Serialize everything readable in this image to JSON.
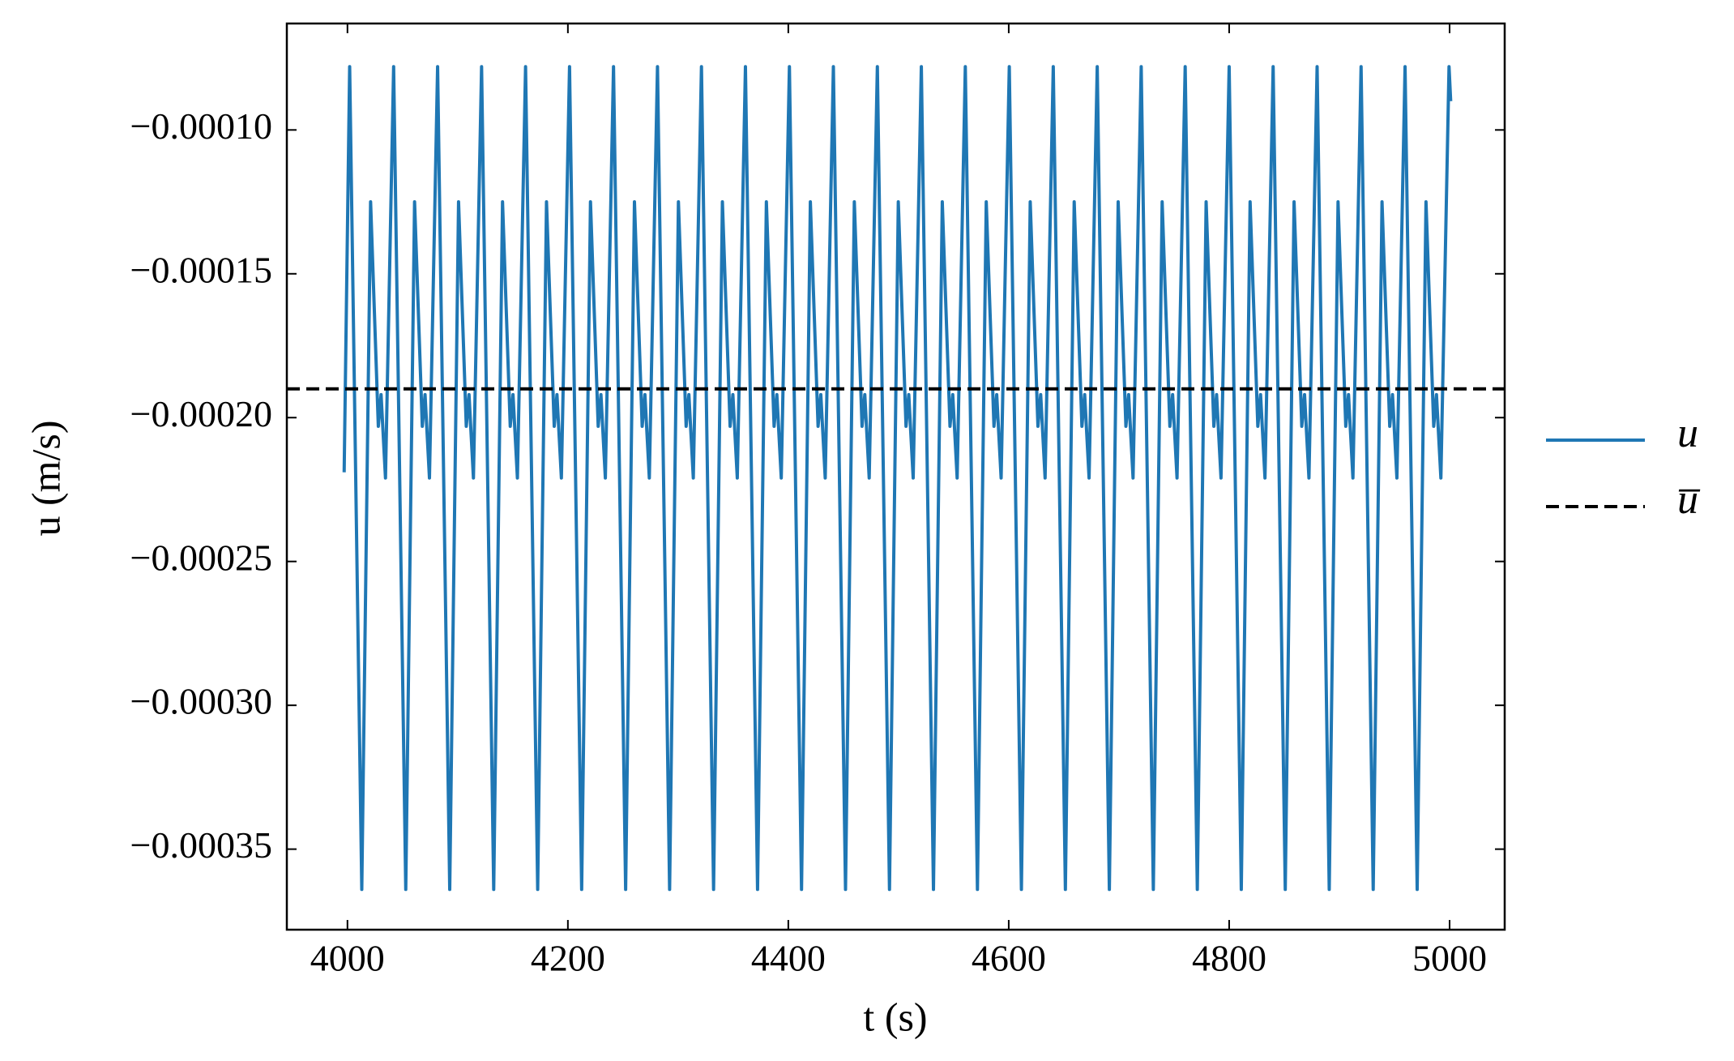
{
  "chart_data": {
    "type": "line",
    "xlabel": "t (s)",
    "ylabel": "u (m/s)",
    "xlim": [
      3945,
      5050
    ],
    "ylim": [
      -0.000378,
      -6.3e-05
    ],
    "xticks": [
      4000,
      4200,
      4400,
      4600,
      4800,
      5000
    ],
    "yticks": [
      {
        "value": -0.0001,
        "label": "−0.00010"
      },
      {
        "value": -0.00015,
        "label": "−0.00015"
      },
      {
        "value": -0.0002,
        "label": "−0.00020"
      },
      {
        "value": -0.00025,
        "label": "−0.00025"
      },
      {
        "value": -0.0003,
        "label": "−0.00030"
      },
      {
        "value": -0.00035,
        "label": "−0.00035"
      }
    ],
    "legend": "outside-right",
    "series": [
      {
        "name": "u",
        "color": "#1f77b4",
        "x": [
          3997,
          4002,
          4013,
          4021,
          4028,
          4030.5,
          4034.5,
          4041.9,
          4052.9,
          4060.9,
          4067.9,
          4070.4,
          4074.4,
          4081.8,
          4092.8,
          4100.8,
          4107.8,
          4110.3,
          4114.3,
          4121.7,
          4132.7,
          4140.7,
          4147.7,
          4150.2,
          4154.2,
          4161.6,
          4172.6,
          4180.6,
          4187.6,
          4190.1,
          4194.1,
          4201.5,
          4212.5,
          4220.5,
          4227.5,
          4230,
          4234,
          4241.4,
          4252.4,
          4260.4,
          4267.4,
          4269.9,
          4273.9,
          4281.3,
          4292.3,
          4300.3,
          4307.3,
          4309.8,
          4313.8,
          4321.2,
          4332.2,
          4340.2,
          4347.2,
          4349.7,
          4353.7,
          4361.1,
          4372.1,
          4380.1,
          4387.1,
          4389.6,
          4393.6,
          4401,
          4412,
          4420,
          4427,
          4429.5,
          4433.5,
          4440.9,
          4451.9,
          4459.9,
          4466.9,
          4469.4,
          4473.4,
          4480.8,
          4491.8,
          4499.8,
          4506.8,
          4509.3,
          4513.3,
          4520.7,
          4531.7,
          4539.7,
          4546.7,
          4549.2,
          4553.2,
          4560.6,
          4571.6,
          4579.6,
          4586.6,
          4589.1,
          4593.1,
          4600.5,
          4611.5,
          4619.5,
          4626.5,
          4629,
          4633,
          4640.4,
          4651.4,
          4659.4,
          4666.4,
          4668.9,
          4672.9,
          4680.3,
          4691.3,
          4699.3,
          4706.3,
          4708.8,
          4712.8,
          4720.2,
          4731.2,
          4739.2,
          4746.2,
          4748.7,
          4752.7,
          4760.1,
          4771.1,
          4779.1,
          4786.1,
          4788.6,
          4792.6,
          4800,
          4811,
          4819,
          4826,
          4828.5,
          4832.5,
          4839.9,
          4850.9,
          4858.9,
          4865.9,
          4868.4,
          4872.4,
          4879.8,
          4890.8,
          4898.8,
          4905.8,
          4908.3,
          4912.3,
          4919.7,
          4930.7,
          4938.7,
          4945.7,
          4948.2,
          4952.2,
          4959.6,
          4970.6,
          4978.6,
          4985.6,
          4988.1,
          4992.1,
          4999.5,
          5001
        ],
        "values": [
          -0.000219,
          -7.8e-05,
          -0.000364,
          -0.000125,
          -0.000203,
          -0.000192,
          -0.000221,
          -7.8e-05,
          -0.000364,
          -0.000125,
          -0.000203,
          -0.000192,
          -0.000221,
          -7.8e-05,
          -0.000364,
          -0.000125,
          -0.000203,
          -0.000192,
          -0.000221,
          -7.8e-05,
          -0.000364,
          -0.000125,
          -0.000203,
          -0.000192,
          -0.000221,
          -7.8e-05,
          -0.000364,
          -0.000125,
          -0.000203,
          -0.000192,
          -0.000221,
          -7.8e-05,
          -0.000364,
          -0.000125,
          -0.000203,
          -0.000192,
          -0.000221,
          -7.8e-05,
          -0.000364,
          -0.000125,
          -0.000203,
          -0.000192,
          -0.000221,
          -7.8e-05,
          -0.000364,
          -0.000125,
          -0.000203,
          -0.000192,
          -0.000221,
          -7.8e-05,
          -0.000364,
          -0.000125,
          -0.000203,
          -0.000192,
          -0.000221,
          -7.8e-05,
          -0.000364,
          -0.000125,
          -0.000203,
          -0.000192,
          -0.000221,
          -7.8e-05,
          -0.000364,
          -0.000125,
          -0.000203,
          -0.000192,
          -0.000221,
          -7.8e-05,
          -0.000364,
          -0.000125,
          -0.000203,
          -0.000192,
          -0.000221,
          -7.8e-05,
          -0.000364,
          -0.000125,
          -0.000203,
          -0.000192,
          -0.000221,
          -7.8e-05,
          -0.000364,
          -0.000125,
          -0.000203,
          -0.000192,
          -0.000221,
          -7.8e-05,
          -0.000364,
          -0.000125,
          -0.000203,
          -0.000192,
          -0.000221,
          -7.8e-05,
          -0.000364,
          -0.000125,
          -0.000203,
          -0.000192,
          -0.000221,
          -7.8e-05,
          -0.000364,
          -0.000125,
          -0.000203,
          -0.000192,
          -0.000221,
          -7.8e-05,
          -0.000364,
          -0.000125,
          -0.000203,
          -0.000192,
          -0.000221,
          -7.8e-05,
          -0.000364,
          -0.000125,
          -0.000203,
          -0.000192,
          -0.000221,
          -7.8e-05,
          -0.000364,
          -0.000125,
          -0.000203,
          -0.000192,
          -0.000221,
          -7.8e-05,
          -0.000364,
          -0.000125,
          -0.000203,
          -0.000192,
          -0.000221,
          -7.8e-05,
          -0.000364,
          -0.000125,
          -0.000203,
          -0.000192,
          -0.000221,
          -7.8e-05,
          -0.000364,
          -0.000125,
          -0.000203,
          -0.000192,
          -0.000221,
          -7.8e-05,
          -0.000364,
          -0.000125,
          -0.000203,
          -0.000192,
          -0.000221,
          -7.8e-05,
          -0.000364,
          -0.000125,
          -0.000203,
          -0.000192,
          -0.000221,
          -7.8e-05,
          -9e-05
        ]
      },
      {
        "name": "u̅",
        "color": "#000000",
        "dashed": true,
        "hline": -0.00019
      }
    ]
  }
}
